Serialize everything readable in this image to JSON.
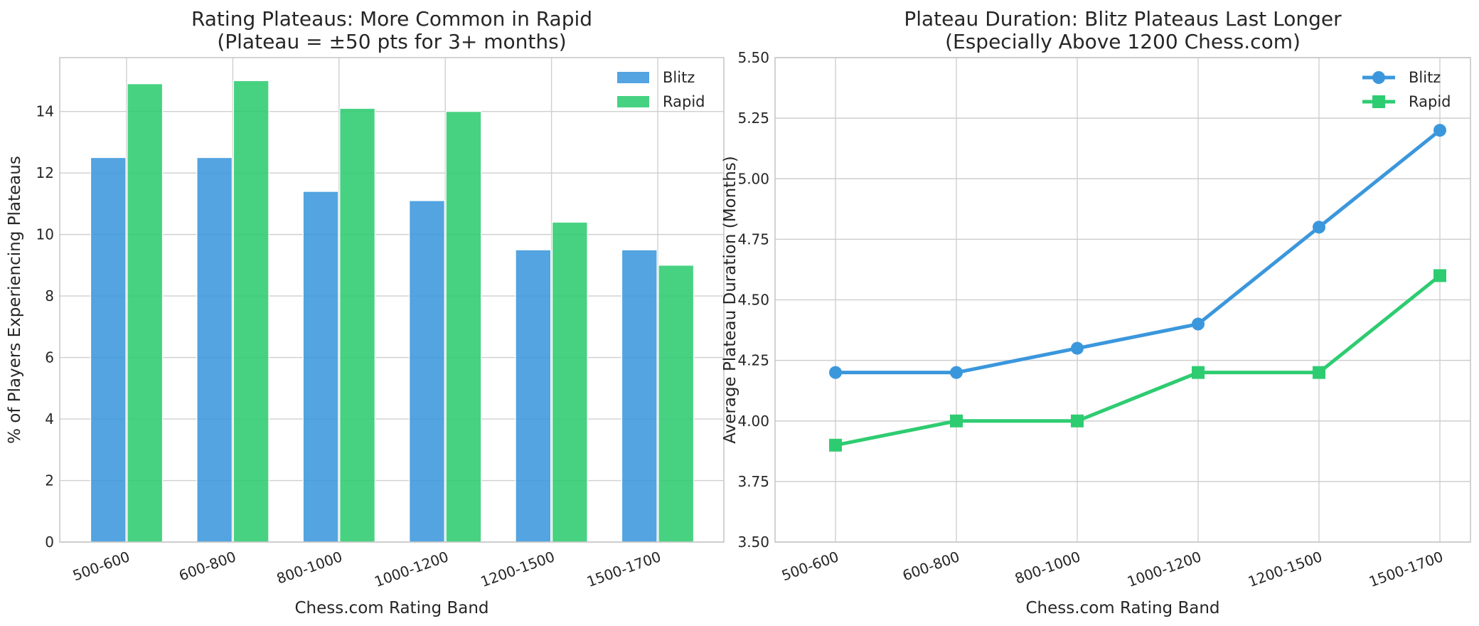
{
  "chart_data": [
    {
      "type": "bar",
      "title": "Rating Plateaus: More Common in Rapid\n(Plateau = ±50 pts for 3+ months)",
      "xlabel": "Chess.com Rating Band",
      "ylabel": "% of Players Experiencing Plateaus",
      "categories": [
        "500-600",
        "600-800",
        "800-1000",
        "1000-1200",
        "1200-1500",
        "1500-1700"
      ],
      "series": [
        {
          "name": "Blitz",
          "color": "#3b97dc",
          "values": [
            12.5,
            12.5,
            11.4,
            11.1,
            9.5,
            9.5
          ]
        },
        {
          "name": "Rapid",
          "color": "#2ecc71",
          "values": [
            14.9,
            15.0,
            14.1,
            14.0,
            10.4,
            9.0
          ]
        }
      ],
      "ylim": [
        0,
        15.75
      ],
      "yticks": [
        0,
        2,
        4,
        6,
        8,
        10,
        12,
        14
      ],
      "grid": true,
      "legend": "top-right"
    },
    {
      "type": "line",
      "title": "Plateau Duration: Blitz Plateaus Last Longer\n(Especially Above 1200 Chess.com)",
      "xlabel": "Chess.com Rating Band",
      "ylabel": "Average Plateau Duration (Months)",
      "categories": [
        "500-600",
        "600-800",
        "800-1000",
        "1000-1200",
        "1200-1500",
        "1500-1700"
      ],
      "series": [
        {
          "name": "Blitz",
          "color": "#3b97dc",
          "marker": "circle",
          "values": [
            4.2,
            4.2,
            4.3,
            4.4,
            4.8,
            5.2
          ]
        },
        {
          "name": "Rapid",
          "color": "#2ecc71",
          "marker": "square",
          "values": [
            3.9,
            4.0,
            4.0,
            4.2,
            4.2,
            4.6
          ]
        }
      ],
      "ylim": [
        3.5,
        5.5
      ],
      "yticks": [
        "3.50",
        "3.75",
        "4.00",
        "4.25",
        "4.50",
        "4.75",
        "5.00",
        "5.25",
        "5.50"
      ],
      "grid": true,
      "legend": "top-right"
    }
  ]
}
